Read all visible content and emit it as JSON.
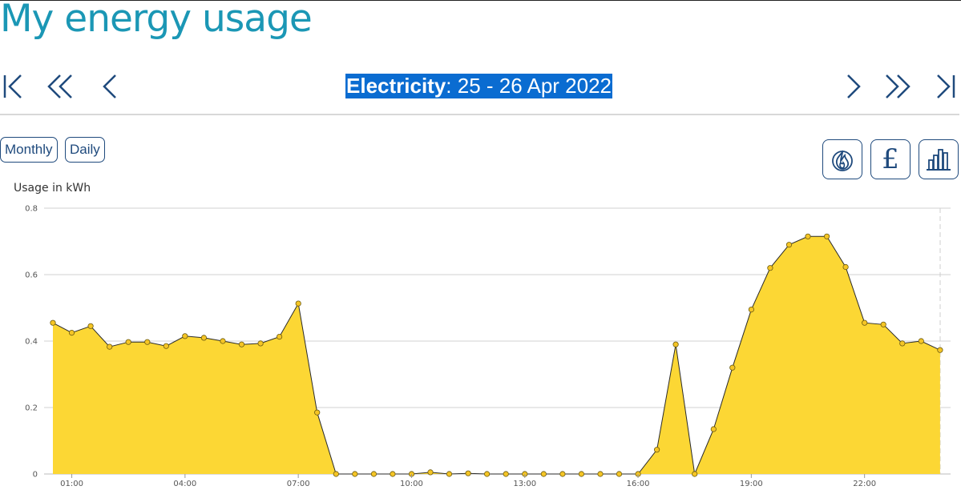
{
  "page": {
    "title": "My energy usage"
  },
  "navigation": {
    "first": "first-period-icon",
    "back_far": "previous-far-icon",
    "back": "previous-icon",
    "forward": "next-icon",
    "forward_far": "next-far-icon",
    "last": "last-period-icon"
  },
  "period": {
    "fuel": "Electricity",
    "range": ": 25 - 26 Apr 2022"
  },
  "view_buttons": {
    "monthly": "Monthly",
    "daily": "Daily"
  },
  "tools": {
    "gas": "flame-icon",
    "cost": "£",
    "usage": "bar-chart-icon"
  },
  "colors": {
    "accent": "#1b97b5",
    "navy": "#1f4a7d",
    "fill": "#fcd734",
    "point": "#f5c525",
    "highlight": "#0a6cd1"
  },
  "chart_data": {
    "type": "area",
    "ylabel": "Usage in kWh",
    "ylim": [
      0,
      0.8
    ],
    "yticks": [
      "0",
      "0.2",
      "0.4",
      "0.6",
      "0.8"
    ],
    "xticks": [
      "01:00",
      "04:00",
      "07:00",
      "10:00",
      "13:00",
      "16:00",
      "19:00",
      "22:00"
    ],
    "grid": true,
    "x": [
      "00:30",
      "01:00",
      "01:30",
      "02:00",
      "02:30",
      "03:00",
      "03:30",
      "04:00",
      "04:30",
      "05:00",
      "05:30",
      "06:00",
      "06:30",
      "07:00",
      "07:30",
      "08:00",
      "08:30",
      "09:00",
      "09:30",
      "10:00",
      "10:30",
      "11:00",
      "11:30",
      "12:00",
      "12:30",
      "13:00",
      "13:30",
      "14:00",
      "14:30",
      "15:00",
      "15:30",
      "16:00",
      "16:30",
      "17:00",
      "17:30",
      "18:00",
      "18:30",
      "19:00",
      "19:30",
      "20:00",
      "20:30",
      "21:00",
      "21:30",
      "22:00",
      "22:30",
      "23:00",
      "23:30",
      "00:00"
    ],
    "values": [
      0.455,
      0.425,
      0.445,
      0.383,
      0.397,
      0.397,
      0.385,
      0.415,
      0.41,
      0.4,
      0.39,
      0.393,
      0.413,
      0.513,
      0.185,
      0,
      0,
      0,
      0,
      0,
      0.005,
      0,
      0.002,
      0,
      0,
      0,
      0,
      0,
      0,
      0,
      0,
      0,
      0.073,
      0.39,
      0,
      0.135,
      0.32,
      0.495,
      0.62,
      0.69,
      0.715,
      0.715,
      0.623,
      0.455,
      0.45,
      0.393,
      0.4,
      0.373
    ]
  }
}
